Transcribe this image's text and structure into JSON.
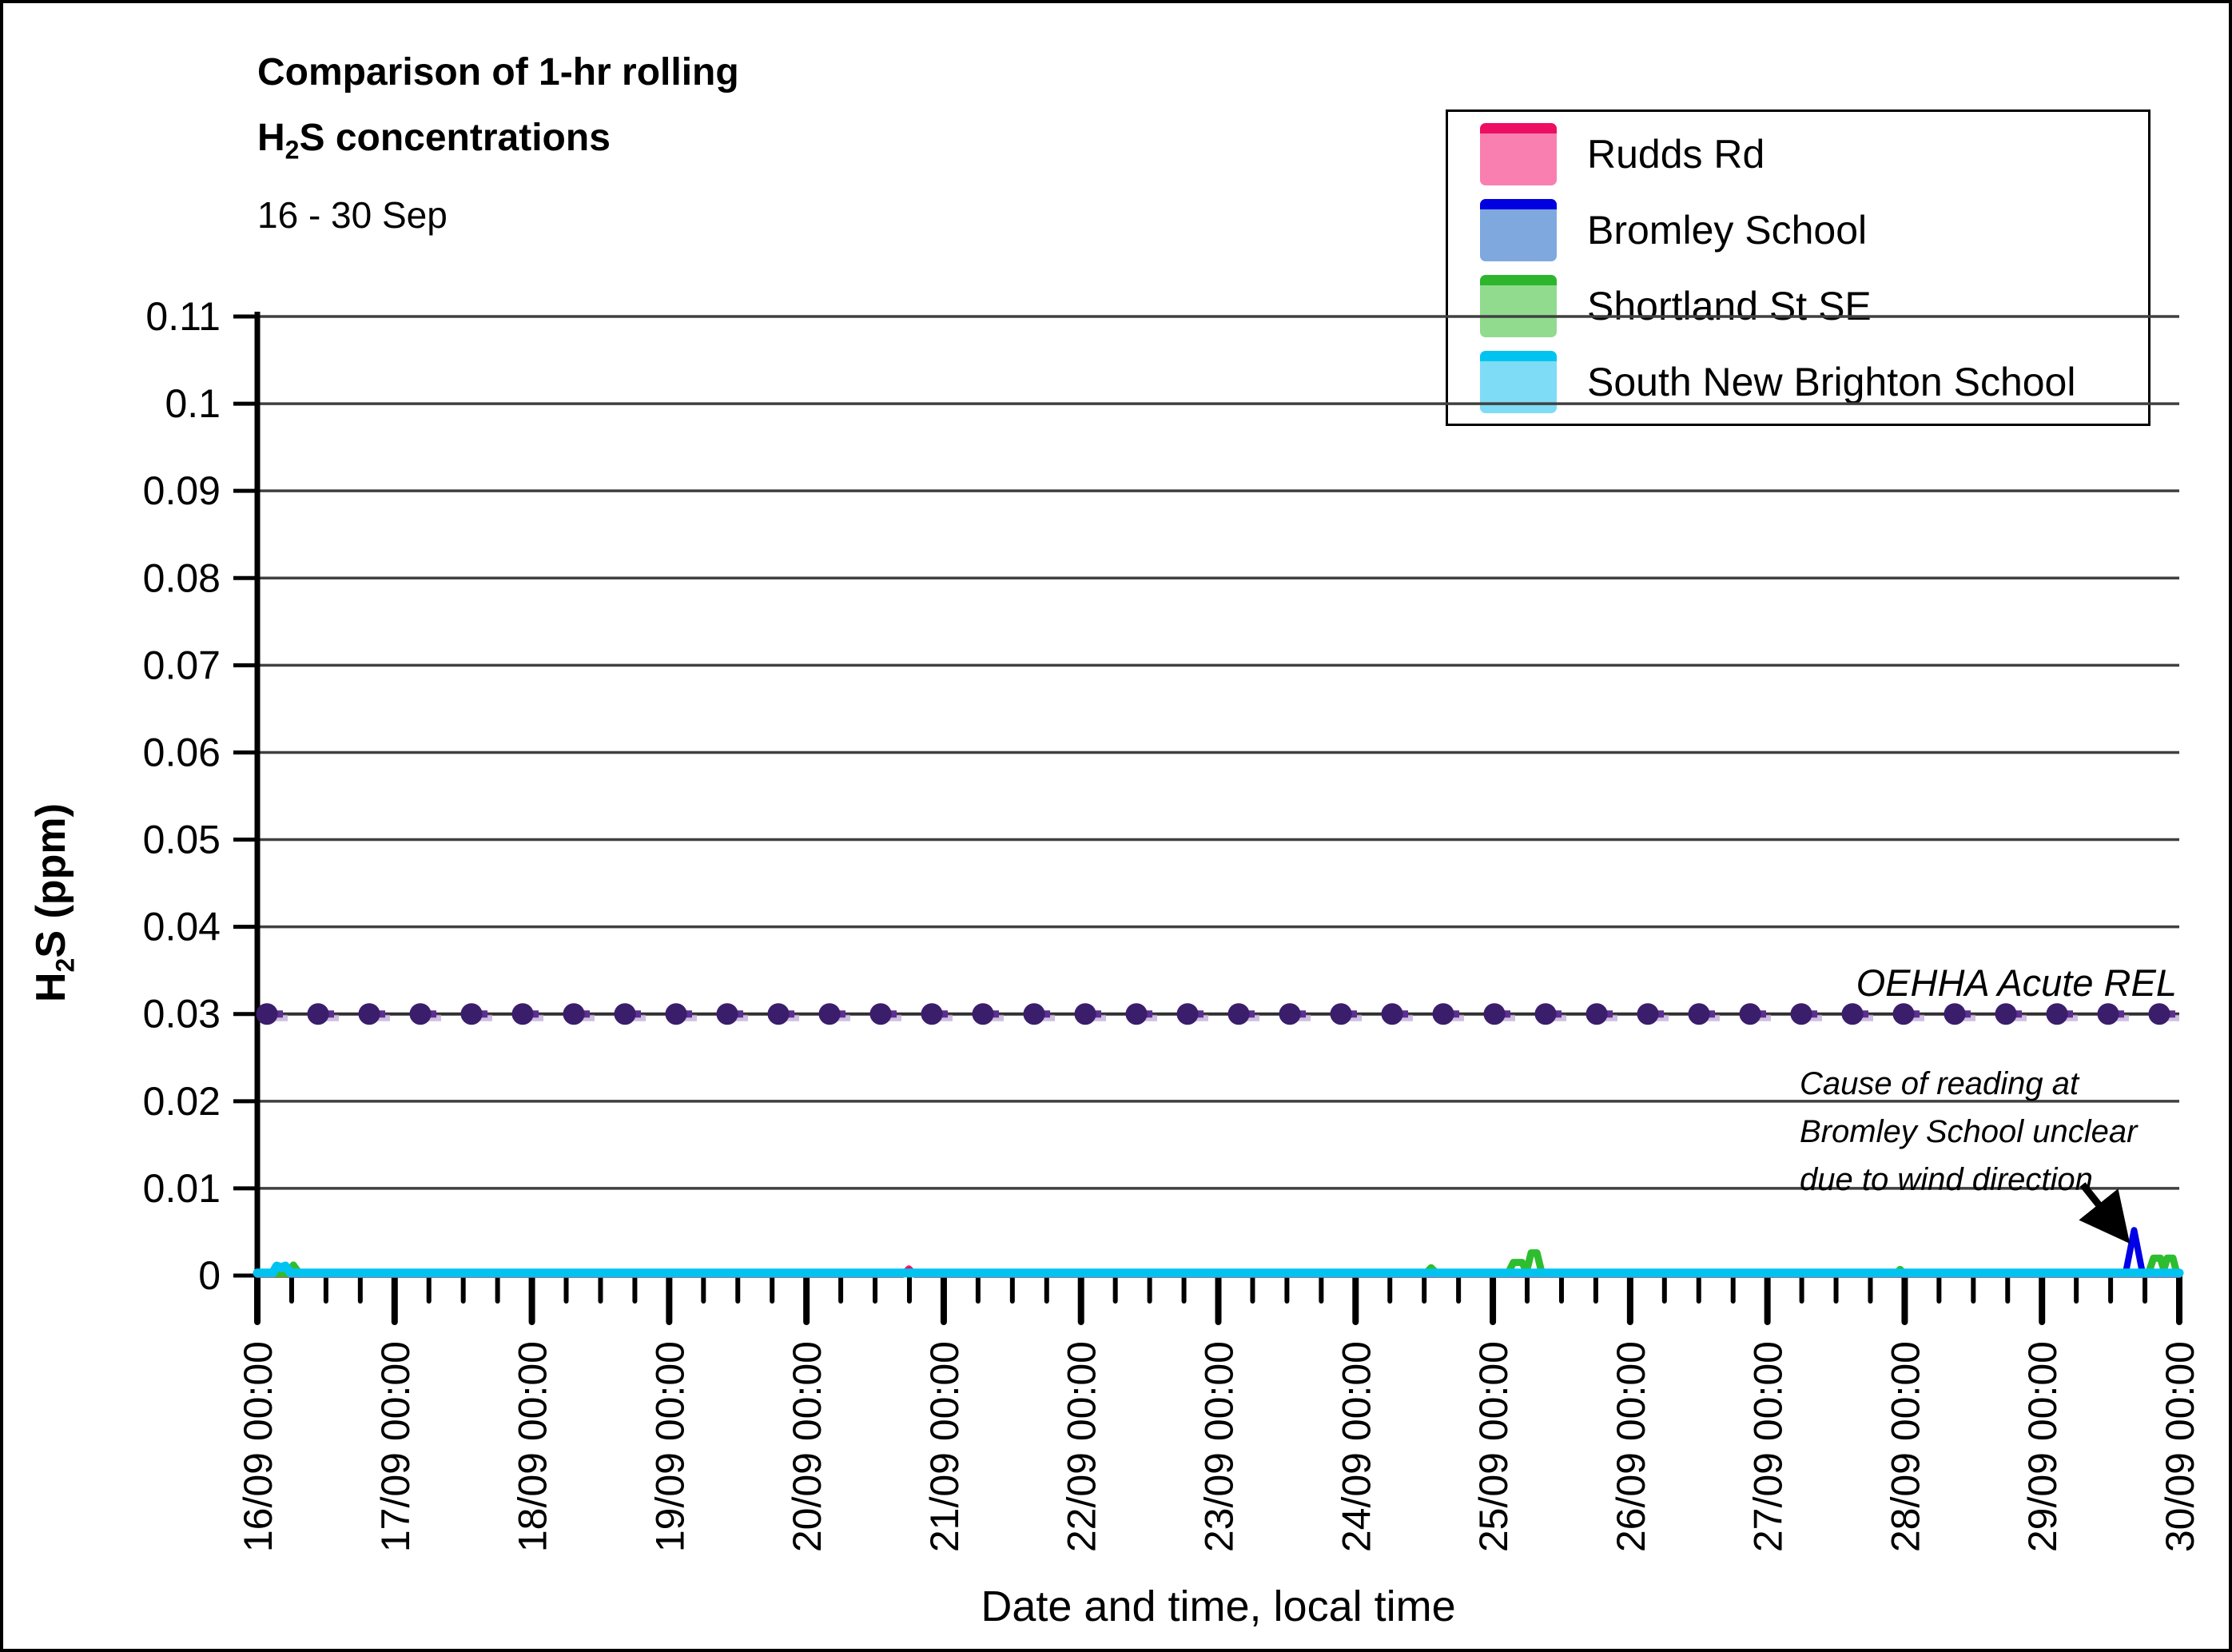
{
  "figure": {
    "title_line1": "Comparison of 1-hr rolling",
    "title_h": "H",
    "title_sub": "2",
    "title_rest": "S concentrations",
    "subtitle": "16 - 30 Sep"
  },
  "legend": {
    "items": [
      {
        "label": "Rudds Rd",
        "line_color": "#ED0E63",
        "fill_color": "#F97FB0"
      },
      {
        "label": "Bromley School",
        "line_color": "#0000E0",
        "fill_color": "#7FA8DF"
      },
      {
        "label": "Shortland St SE",
        "line_color": "#2DB52D",
        "fill_color": "#90DB8E"
      },
      {
        "label": "South New Brighton School",
        "line_color": "#00C4F0",
        "fill_color": "#7FDCF7"
      }
    ]
  },
  "chart_data": {
    "type": "line",
    "title": "Comparison of 1-hr rolling H2S concentrations",
    "subtitle": "16 - 30 Sep",
    "xlabel": "Date and time, local time",
    "ylabel_pre": "H",
    "ylabel_sub": "2",
    "ylabel_post": "S (ppm)",
    "ylim": [
      0,
      0.11
    ],
    "ytick_step": 0.01,
    "y_tick_labels": [
      "0",
      "0.01",
      "0.02",
      "0.03",
      "0.04",
      "0.05",
      "0.06",
      "0.07",
      "0.08",
      "0.09",
      "0.1",
      "0.11"
    ],
    "x_hours_range": [
      0,
      336
    ],
    "x_major_every_hours": 24,
    "x_minor_every_hours": 6,
    "x_tick_labels": [
      "16/09 00:00",
      "17/09 00:00",
      "18/09 00:00",
      "19/09 00:00",
      "20/09 00:00",
      "21/09 00:00",
      "22/09 00:00",
      "23/09 00:00",
      "24/09 00:00",
      "25/09 00:00",
      "26/09 00:00",
      "27/09 00:00",
      "28/09 00:00",
      "29/09 00:00",
      "30/09 00:00"
    ],
    "grid_color": "#404040",
    "ref_line": {
      "value": 0.03,
      "label": "OEHHA Acute REL",
      "line_color": "#303030",
      "dash_color": "#5B2F90",
      "dash_shadow_color": "#BFA8DC",
      "dot_color": "#3A1D6B"
    },
    "annotation": {
      "lines": [
        "Cause of reading at",
        "Bromley School unclear",
        "due to wind direction"
      ]
    },
    "series": [
      {
        "name": "Rudds Rd",
        "color": "#EE1567",
        "width": 8,
        "points": [
          [
            0,
            0.0001
          ],
          [
            112.8,
            0.0001
          ],
          [
            113.9,
            0.0008
          ],
          [
            115,
            0.0001
          ],
          [
            336,
            0.0001
          ]
        ]
      },
      {
        "name": "Bromley School",
        "color": "#0000E6",
        "width": 8,
        "points": [
          [
            0,
            0.0002
          ],
          [
            2.9,
            0.0002
          ],
          [
            3.5,
            0.0006
          ],
          [
            4.3,
            0.0002
          ],
          [
            326.6,
            0.0002
          ],
          [
            328.1,
            0.0052
          ],
          [
            329.6,
            0.0002
          ],
          [
            336,
            0.0002
          ]
        ]
      },
      {
        "name": "Shortland St SE",
        "color": "#2EBD2E",
        "width": 9,
        "points": [
          [
            0,
            0.0002
          ],
          [
            5.4,
            0.0002
          ],
          [
            6.3,
            0.0012
          ],
          [
            7.4,
            0.0002
          ],
          [
            204.2,
            0.0002
          ],
          [
            205.2,
            0.0009
          ],
          [
            206.3,
            0.0002
          ],
          [
            218.6,
            0.0002
          ],
          [
            219.6,
            0.0015
          ],
          [
            221.1,
            0.0015
          ],
          [
            221.9,
            0.0005
          ],
          [
            222.7,
            0.0026
          ],
          [
            223.7,
            0.0026
          ],
          [
            224.6,
            0.0002
          ],
          [
            286.4,
            0.0002
          ],
          [
            287.2,
            0.0007
          ],
          [
            288,
            0.0002
          ],
          [
            330.6,
            0.0002
          ],
          [
            331.5,
            0.002
          ],
          [
            332.7,
            0.002
          ],
          [
            333.3,
            0.0007
          ],
          [
            333.9,
            0.002
          ],
          [
            334.9,
            0.002
          ],
          [
            335.6,
            0.0002
          ],
          [
            336,
            0.0002
          ]
        ]
      },
      {
        "name": "South New Brighton School",
        "color": "#00C3F2",
        "width": 11,
        "points": [
          [
            0,
            0.0003
          ],
          [
            2.7,
            0.0003
          ],
          [
            3.4,
            0.0011
          ],
          [
            4.2,
            0.0009
          ],
          [
            4.9,
            0.0011
          ],
          [
            5.8,
            0.0003
          ],
          [
            336,
            0.0003
          ]
        ]
      }
    ]
  }
}
